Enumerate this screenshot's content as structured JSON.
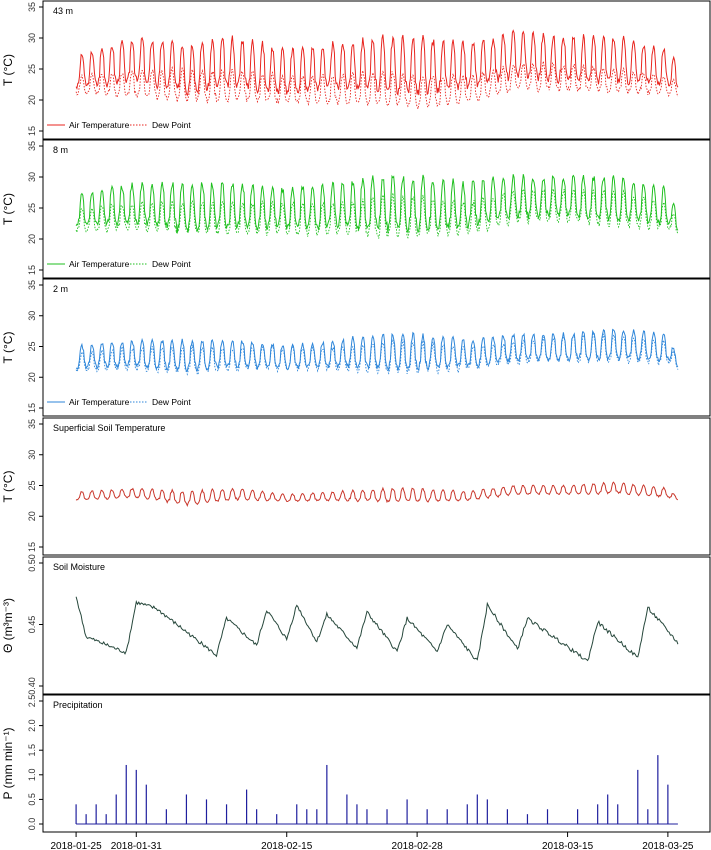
{
  "chart_data": [
    {
      "type": "line",
      "panel_title": "43 m",
      "ylabel": "T (°C)",
      "ylim": [
        15,
        35
      ],
      "yticks": [
        15,
        20,
        25,
        30,
        35
      ],
      "color": "#e8251f",
      "legend": {
        "placement": "bottom-left",
        "entries": [
          "Air Temperature",
          "Dew Point"
        ]
      },
      "series": [
        {
          "name": "Air Temperature",
          "style": "solid",
          "x": [
            "2018-01-25",
            "2018-01-31",
            "2018-02-05",
            "2018-02-10",
            "2018-02-15",
            "2018-02-20",
            "2018-02-25",
            "2018-02-28",
            "2018-03-05",
            "2018-03-10",
            "2018-03-15",
            "2018-03-20",
            "2018-03-25",
            "2018-03-26"
          ],
          "y_min": [
            20,
            20,
            18,
            19,
            18,
            19,
            18,
            17,
            19,
            21,
            20,
            20,
            20,
            20
          ],
          "y_max": [
            27,
            30,
            29,
            30,
            28,
            29,
            30,
            30,
            29,
            31,
            30,
            30,
            28,
            26
          ]
        },
        {
          "name": "Dew Point",
          "style": "dotted",
          "x": [
            "2018-01-25",
            "2018-01-31",
            "2018-02-05",
            "2018-02-10",
            "2018-02-15",
            "2018-02-20",
            "2018-02-25",
            "2018-02-28",
            "2018-03-05",
            "2018-03-10",
            "2018-03-15",
            "2018-03-20",
            "2018-03-25",
            "2018-03-26"
          ],
          "y_min": [
            20,
            19,
            18,
            18,
            18,
            18,
            17,
            17,
            18,
            20,
            20,
            20,
            20,
            20
          ],
          "y_max": [
            24,
            25,
            25,
            25,
            24,
            24,
            25,
            24,
            24,
            26,
            26,
            25,
            24,
            23
          ]
        }
      ]
    },
    {
      "type": "line",
      "panel_title": "8 m",
      "ylabel": "T (°C)",
      "ylim": [
        15,
        35
      ],
      "yticks": [
        15,
        20,
        25,
        30,
        35
      ],
      "color": "#1fbf1f",
      "legend": {
        "placement": "bottom-left",
        "entries": [
          "Air Temperature",
          "Dew Point"
        ]
      },
      "series": [
        {
          "name": "Air Temperature",
          "style": "solid",
          "x": [
            "2018-01-25",
            "2018-01-31",
            "2018-02-05",
            "2018-02-10",
            "2018-02-15",
            "2018-02-20",
            "2018-02-25",
            "2018-02-28",
            "2018-03-05",
            "2018-03-10",
            "2018-03-15",
            "2018-03-20",
            "2018-03-25",
            "2018-03-26"
          ],
          "y_min": [
            20,
            20,
            18,
            19,
            19,
            19,
            18,
            18,
            19,
            21,
            21,
            20,
            20,
            20
          ],
          "y_max": [
            27,
            29,
            29,
            29,
            28,
            29,
            30,
            30,
            29,
            30,
            30,
            30,
            28,
            24
          ]
        },
        {
          "name": "Dew Point",
          "style": "dotted",
          "x": [
            "2018-01-25",
            "2018-01-31",
            "2018-02-05",
            "2018-02-10",
            "2018-02-15",
            "2018-02-20",
            "2018-02-25",
            "2018-02-28",
            "2018-03-05",
            "2018-03-10",
            "2018-03-15",
            "2018-03-20",
            "2018-03-25",
            "2018-03-26"
          ],
          "y_min": [
            20,
            20,
            19,
            19,
            19,
            19,
            18,
            18,
            19,
            21,
            21,
            20,
            20,
            20
          ],
          "y_max": [
            25,
            26,
            26,
            26,
            26,
            26,
            27,
            27,
            26,
            28,
            28,
            28,
            26,
            23
          ]
        }
      ]
    },
    {
      "type": "line",
      "panel_title": "2 m",
      "ylabel": "T (°C)",
      "ylim": [
        15,
        35
      ],
      "yticks": [
        15,
        20,
        25,
        30,
        35
      ],
      "color": "#2e86d9",
      "legend": {
        "placement": "bottom-left",
        "entries": [
          "Air Temperature",
          "Dew Point"
        ]
      },
      "series": [
        {
          "name": "Air Temperature",
          "style": "solid",
          "x": [
            "2018-01-25",
            "2018-01-31",
            "2018-02-05",
            "2018-02-10",
            "2018-02-15",
            "2018-02-20",
            "2018-02-25",
            "2018-02-28",
            "2018-03-05",
            "2018-03-10",
            "2018-03-15",
            "2018-03-20",
            "2018-03-25",
            "2018-03-26"
          ],
          "y_min": [
            20,
            20,
            19,
            20,
            20,
            20,
            19,
            19,
            20,
            21,
            21,
            21,
            21,
            21
          ],
          "y_max": [
            25,
            26,
            26,
            26,
            25,
            26,
            27,
            27,
            26,
            27,
            27,
            28,
            27,
            23
          ]
        },
        {
          "name": "Dew Point",
          "style": "dotted",
          "x": [
            "2018-01-25",
            "2018-01-31",
            "2018-02-05",
            "2018-02-10",
            "2018-02-15",
            "2018-02-20",
            "2018-02-25",
            "2018-02-28",
            "2018-03-05",
            "2018-03-10",
            "2018-03-15",
            "2018-03-20",
            "2018-03-25",
            "2018-03-26"
          ],
          "y_min": [
            20,
            20,
            19,
            20,
            20,
            20,
            19,
            19,
            20,
            21,
            21,
            21,
            21,
            21
          ],
          "y_max": [
            24,
            25,
            25,
            25,
            25,
            25,
            26,
            26,
            25,
            26,
            27,
            27,
            26,
            23
          ]
        }
      ]
    },
    {
      "type": "line",
      "panel_title": "Superficial Soil Temperature",
      "ylabel": "T (°C)",
      "ylim": [
        15,
        35
      ],
      "yticks": [
        15,
        20,
        25,
        30,
        35
      ],
      "color": "#c9372c",
      "series": [
        {
          "name": "Soil Temperature",
          "style": "solid",
          "x": [
            "2018-01-25",
            "2018-01-31",
            "2018-02-05",
            "2018-02-10",
            "2018-02-15",
            "2018-02-20",
            "2018-02-25",
            "2018-02-28",
            "2018-03-05",
            "2018-03-10",
            "2018-03-15",
            "2018-03-20",
            "2018-03-25",
            "2018-03-26"
          ],
          "y_min": [
            22,
            22.5,
            21,
            22,
            22,
            22,
            21.5,
            21.5,
            22,
            23,
            23,
            23,
            22.5,
            22.5
          ],
          "y_max": [
            24,
            24.5,
            24,
            24.5,
            23.5,
            24,
            24.5,
            24.5,
            24,
            25,
            25,
            25.5,
            24.5,
            23
          ]
        }
      ]
    },
    {
      "type": "line",
      "panel_title": "Soil Moisture",
      "ylabel": "Θ (m³m⁻³)",
      "ylim": [
        0.4,
        0.5
      ],
      "yticks": [
        0.4,
        0.45,
        0.5
      ],
      "ytick_labels": [
        "0.40",
        "0.45",
        "0.50"
      ],
      "color": "#26473b",
      "series": [
        {
          "name": "Soil Moisture",
          "style": "solid",
          "x": [
            "2018-01-25",
            "2018-01-26",
            "2018-01-30",
            "2018-01-31",
            "2018-02-02",
            "2018-02-08",
            "2018-02-09",
            "2018-02-12",
            "2018-02-13",
            "2018-02-15",
            "2018-02-16",
            "2018-02-18",
            "2018-02-19",
            "2018-02-22",
            "2018-02-23",
            "2018-02-26",
            "2018-02-27",
            "2018-03-02",
            "2018-03-03",
            "2018-03-06",
            "2018-03-07",
            "2018-03-10",
            "2018-03-11",
            "2018-03-17",
            "2018-03-18",
            "2018-03-22",
            "2018-03-23",
            "2018-03-26"
          ],
          "y": [
            0.473,
            0.44,
            0.427,
            0.468,
            0.463,
            0.425,
            0.455,
            0.433,
            0.462,
            0.438,
            0.466,
            0.436,
            0.458,
            0.431,
            0.46,
            0.428,
            0.455,
            0.428,
            0.45,
            0.42,
            0.466,
            0.43,
            0.455,
            0.42,
            0.452,
            0.423,
            0.464,
            0.435
          ]
        }
      ]
    },
    {
      "type": "bar",
      "panel_title": "Precipitation",
      "ylabel": "P (mm min⁻¹)",
      "ylim": [
        0,
        2.5
      ],
      "yticks": [
        0,
        0.5,
        1,
        1.5,
        2,
        2.5
      ],
      "ytick_labels": [
        "0.0",
        "0.5",
        "1.0",
        "1.5",
        "2.0",
        "2.5"
      ],
      "color": "#1f1f9e",
      "x": [
        "2018-01-25",
        "2018-01-26",
        "2018-01-27",
        "2018-01-28",
        "2018-01-29",
        "2018-01-30",
        "2018-01-31",
        "2018-02-01",
        "2018-02-03",
        "2018-02-05",
        "2018-02-07",
        "2018-02-09",
        "2018-02-11",
        "2018-02-12",
        "2018-02-14",
        "2018-02-16",
        "2018-02-17",
        "2018-02-18",
        "2018-02-19",
        "2018-02-21",
        "2018-02-22",
        "2018-02-23",
        "2018-02-25",
        "2018-02-27",
        "2018-03-01",
        "2018-03-03",
        "2018-03-05",
        "2018-03-06",
        "2018-03-07",
        "2018-03-09",
        "2018-03-11",
        "2018-03-13",
        "2018-03-16",
        "2018-03-18",
        "2018-03-19",
        "2018-03-20",
        "2018-03-22",
        "2018-03-23",
        "2018-03-24",
        "2018-03-25"
      ],
      "values": [
        0.4,
        0.2,
        0.4,
        0.2,
        0.6,
        1.2,
        1.1,
        0.8,
        0.3,
        0.6,
        0.5,
        0.4,
        0.7,
        0.3,
        0.2,
        0.4,
        0.3,
        0.3,
        1.2,
        0.6,
        0.4,
        0.3,
        0.3,
        0.5,
        0.3,
        0.3,
        0.4,
        0.6,
        0.5,
        0.3,
        0.2,
        0.3,
        0.3,
        0.4,
        0.6,
        0.4,
        1.1,
        0.3,
        1.4,
        0.8
      ]
    }
  ],
  "x_axis": {
    "tick_labels": [
      "2018-01-25",
      "2018-01-31",
      "2018-02-15",
      "2018-02-28",
      "2018-03-15",
      "2018-03-25"
    ]
  }
}
